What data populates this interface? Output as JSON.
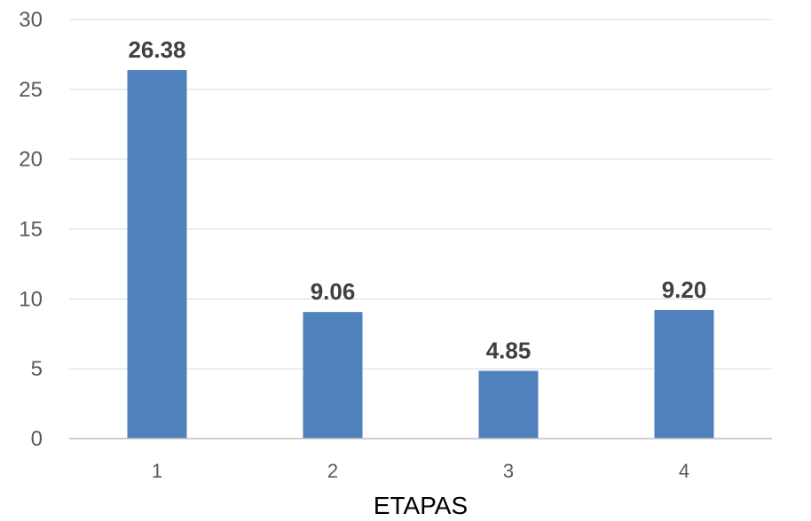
{
  "chart_data": {
    "type": "bar",
    "title": "",
    "xlabel": "ETAPAS",
    "ylabel": "",
    "categories": [
      "1",
      "2",
      "3",
      "4"
    ],
    "values": [
      26.38,
      9.06,
      4.85,
      9.2
    ],
    "data_labels": [
      "26.38",
      "9.06",
      "4.85",
      "9.20"
    ],
    "yticks": [
      "0",
      "5",
      "10",
      "15",
      "20",
      "25",
      "30"
    ],
    "ylim": [
      0,
      30
    ],
    "grid": true,
    "legend": "none",
    "bar_color": "#4f81bd"
  }
}
